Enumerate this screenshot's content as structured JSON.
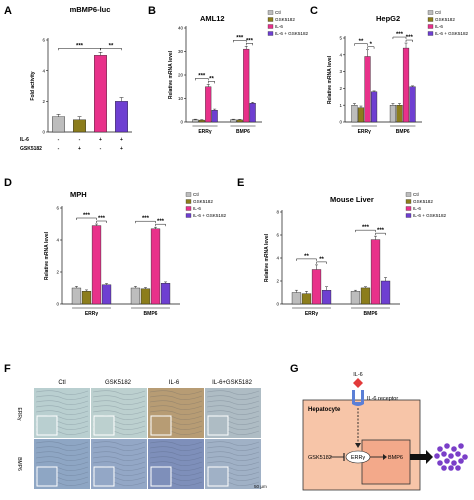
{
  "panels": [
    {
      "letter": "A",
      "title": "mBMP6-luc"
    },
    {
      "letter": "B",
      "title": "AML12"
    },
    {
      "letter": "C",
      "title": "HepG2"
    },
    {
      "letter": "D",
      "title": "MPH"
    },
    {
      "letter": "E",
      "title": "Mouse Liver"
    },
    {
      "letter": "F",
      "title": ""
    },
    {
      "letter": "G",
      "title": ""
    }
  ],
  "chart_data": [
    {
      "type": "bar",
      "panel": "A",
      "title": "mBMP6-luc",
      "ylabel": "Fold activity",
      "ylim": [
        0,
        6
      ],
      "yticks": [
        "0",
        "2",
        "4",
        "6"
      ],
      "conditions": [
        {
          "label": "IL-6",
          "marks": [
            "-",
            "-",
            "+",
            "+"
          ]
        },
        {
          "label": "GSK5182",
          "marks": [
            "-",
            "+",
            "-",
            "+"
          ]
        }
      ],
      "values": [
        1.0,
        0.8,
        5.0,
        2.0
      ],
      "errors": [
        0.15,
        0.2,
        0.2,
        0.25
      ],
      "colors": [
        "#bdbdbd",
        "#8c7d1c",
        "#e8318a",
        "#6e3fd1"
      ],
      "significance": [
        {
          "from": 0,
          "to": 2,
          "label": "***"
        },
        {
          "from": 2,
          "to": 3,
          "label": "**"
        }
      ]
    },
    {
      "type": "bar",
      "panel": "B",
      "title": "AML12",
      "ylabel": "Relative mRNA level",
      "ylim": [
        0,
        40
      ],
      "yticks": [
        "0",
        "10",
        "20",
        "30",
        "40"
      ],
      "categories": [
        "ERRγ",
        "BMP6"
      ],
      "legend": [
        "Ctl",
        "GSK5182",
        "IL-6",
        "IL-6 + GSK5182"
      ],
      "colors": [
        "#bdbdbd",
        "#8c7d1c",
        "#e8318a",
        "#6e3fd1"
      ],
      "series": [
        {
          "name": "Ctl",
          "values": [
            1.0,
            1.0
          ],
          "errors": [
            0.2,
            0.2
          ]
        },
        {
          "name": "GSK5182",
          "values": [
            0.8,
            0.9
          ],
          "errors": [
            0.2,
            0.2
          ]
        },
        {
          "name": "IL-6",
          "values": [
            15.0,
            31.0
          ],
          "errors": [
            1.0,
            1.2
          ]
        },
        {
          "name": "IL-6 + GSK5182",
          "values": [
            5.0,
            8.0
          ],
          "errors": [
            0.5,
            0.4
          ]
        }
      ],
      "significance": [
        {
          "category": 0,
          "from": 0,
          "to": 2,
          "label": "***"
        },
        {
          "category": 0,
          "from": 2,
          "to": 3,
          "label": "**"
        },
        {
          "category": 1,
          "from": 0,
          "to": 2,
          "label": "***"
        },
        {
          "category": 1,
          "from": 2,
          "to": 3,
          "label": "***"
        }
      ]
    },
    {
      "type": "bar",
      "panel": "C",
      "title": "HepG2",
      "ylabel": "Relative mRNA level",
      "ylim": [
        0,
        5
      ],
      "yticks": [
        "0",
        "1",
        "2",
        "3",
        "4",
        "5"
      ],
      "categories": [
        "ERRγ",
        "BMP6"
      ],
      "legend": [
        "Ctl",
        "GSK5182",
        "IL-6",
        "IL-6 + GSK5182"
      ],
      "colors": [
        "#bdbdbd",
        "#8c7d1c",
        "#e8318a",
        "#6e3fd1"
      ],
      "series": [
        {
          "name": "Ctl",
          "values": [
            1.0,
            1.0
          ],
          "errors": [
            0.1,
            0.1
          ]
        },
        {
          "name": "GSK5182",
          "values": [
            0.85,
            1.0
          ],
          "errors": [
            0.1,
            0.1
          ]
        },
        {
          "name": "IL-6",
          "values": [
            3.9,
            4.4
          ],
          "errors": [
            0.4,
            0.3
          ]
        },
        {
          "name": "IL-6 + GSK5182",
          "values": [
            1.8,
            2.1
          ],
          "errors": [
            0.05,
            0.05
          ]
        }
      ],
      "significance": [
        {
          "category": 0,
          "from": 0,
          "to": 2,
          "label": "**"
        },
        {
          "category": 0,
          "from": 2,
          "to": 3,
          "label": "*"
        },
        {
          "category": 1,
          "from": 0,
          "to": 2,
          "label": "***"
        },
        {
          "category": 1,
          "from": 2,
          "to": 3,
          "label": "***"
        }
      ]
    },
    {
      "type": "bar",
      "panel": "D",
      "title": "MPH",
      "ylabel": "Relative mRNA level",
      "ylim": [
        0,
        6
      ],
      "yticks": [
        "0",
        "2",
        "4",
        "6"
      ],
      "categories": [
        "ERRγ",
        "BMP6"
      ],
      "legend": [
        "Ctl",
        "GSK5182",
        "IL-6",
        "IL-6 + GSK5182"
      ],
      "colors": [
        "#bdbdbd",
        "#8c7d1c",
        "#e8318a",
        "#6e3fd1"
      ],
      "series": [
        {
          "name": "Ctl",
          "values": [
            1.0,
            1.0
          ],
          "errors": [
            0.1,
            0.1
          ]
        },
        {
          "name": "GSK5182",
          "values": [
            0.8,
            0.95
          ],
          "errors": [
            0.08,
            0.08
          ]
        },
        {
          "name": "IL-6",
          "values": [
            4.9,
            4.7
          ],
          "errors": [
            0.1,
            0.1
          ]
        },
        {
          "name": "IL-6 + GSK5182",
          "values": [
            1.2,
            1.3
          ],
          "errors": [
            0.08,
            0.08
          ]
        }
      ],
      "significance": [
        {
          "category": 0,
          "from": 0,
          "to": 2,
          "label": "***"
        },
        {
          "category": 0,
          "from": 2,
          "to": 3,
          "label": "***"
        },
        {
          "category": 1,
          "from": 0,
          "to": 2,
          "label": "***"
        },
        {
          "category": 1,
          "from": 2,
          "to": 3,
          "label": "***"
        }
      ]
    },
    {
      "type": "bar",
      "panel": "E",
      "title": "Mouse Liver",
      "ylabel": "Relative mRNA level",
      "ylim": [
        0,
        8
      ],
      "yticks": [
        "0",
        "2",
        "4",
        "6",
        "8"
      ],
      "categories": [
        "ERRγ",
        "BMP6"
      ],
      "legend": [
        "Ctl",
        "GSK5182",
        "IL-6",
        "IL-6 + GSK5182"
      ],
      "colors": [
        "#bdbdbd",
        "#8c7d1c",
        "#e8318a",
        "#6e3fd1"
      ],
      "series": [
        {
          "name": "Ctl",
          "values": [
            1.0,
            1.1
          ],
          "errors": [
            0.2,
            0.1
          ]
        },
        {
          "name": "GSK5182",
          "values": [
            0.9,
            1.4
          ],
          "errors": [
            0.2,
            0.1
          ]
        },
        {
          "name": "IL-6",
          "values": [
            3.0,
            5.6
          ],
          "errors": [
            0.4,
            0.3
          ]
        },
        {
          "name": "IL-6 + GSK5182",
          "values": [
            1.2,
            2.0
          ],
          "errors": [
            0.3,
            0.3
          ]
        }
      ],
      "significance": [
        {
          "category": 0,
          "from": 0,
          "to": 2,
          "label": "**"
        },
        {
          "category": 0,
          "from": 2,
          "to": 3,
          "label": "**"
        },
        {
          "category": 1,
          "from": 0,
          "to": 2,
          "label": "***"
        },
        {
          "category": 1,
          "from": 2,
          "to": 3,
          "label": "***"
        }
      ]
    }
  ],
  "histology": {
    "columns": [
      "Ctl",
      "GSK5182",
      "IL-6",
      "IL-6+GSK5182"
    ],
    "rows": [
      "ERRγ",
      "BMP6"
    ],
    "scale_bar": "50 μm",
    "colors": {
      "ctl": "#b9cfd0",
      "gsk": "#bcd0cf",
      "il6": "#b79c74",
      "combo": "#aebcc4",
      "bmp_ctl": "#8ea6c4",
      "bmp_gsk": "#93a7c6",
      "bmp_il6": "#7e8fba",
      "bmp_combo": "#a0b1c6"
    }
  },
  "diagram": {
    "ligand": "IL-6",
    "receptor": "IL-6 receptor",
    "cell": "Hepatocyte",
    "inhibitor": "GSK5182",
    "nuclear_factor": "ERRγ",
    "gene": "BMP6",
    "colors": {
      "cell": "#f7c5a8",
      "ligand": "#e23a3a",
      "receptor": "#5b7fd6",
      "bmp": "#7a3fc8"
    }
  }
}
